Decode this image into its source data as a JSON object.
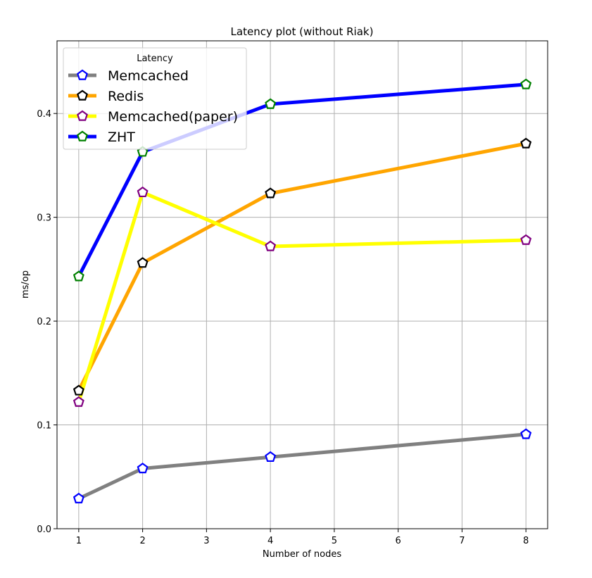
{
  "chart_data": {
    "type": "line",
    "title": "Latency plot (without Riak)",
    "xlabel": "Number of nodes",
    "ylabel": "ms/op",
    "xlim": [
      0.66,
      8.34
    ],
    "ylim": [
      0,
      0.47
    ],
    "x_ticks": [
      1,
      2,
      3,
      4,
      5,
      6,
      7,
      8
    ],
    "y_ticks": [
      0.0,
      0.1,
      0.2,
      0.3,
      0.4
    ],
    "y_tick_labels": [
      "0.0",
      "0.1",
      "0.2",
      "0.3",
      "0.4"
    ],
    "grid": true,
    "legend": {
      "title": "Latency",
      "placement": "top-left"
    },
    "x": [
      1,
      2,
      4,
      8
    ],
    "series": [
      {
        "name": "Memcached",
        "values": [
          0.029,
          0.058,
          0.069,
          0.091
        ],
        "line_color": "#808080",
        "marker_edge": "#0000ff"
      },
      {
        "name": "Redis",
        "values": [
          0.133,
          0.256,
          0.323,
          0.371
        ],
        "line_color": "#ffa500",
        "marker_edge": "#000000"
      },
      {
        "name": "Memcached(paper)",
        "values": [
          0.122,
          0.324,
          0.272,
          0.278
        ],
        "line_color": "#ffff00",
        "marker_edge": "#800080"
      },
      {
        "name": "ZHT",
        "values": [
          0.243,
          0.363,
          0.409,
          0.428
        ],
        "line_color": "#0000ff",
        "marker_edge": "#008000"
      }
    ]
  }
}
